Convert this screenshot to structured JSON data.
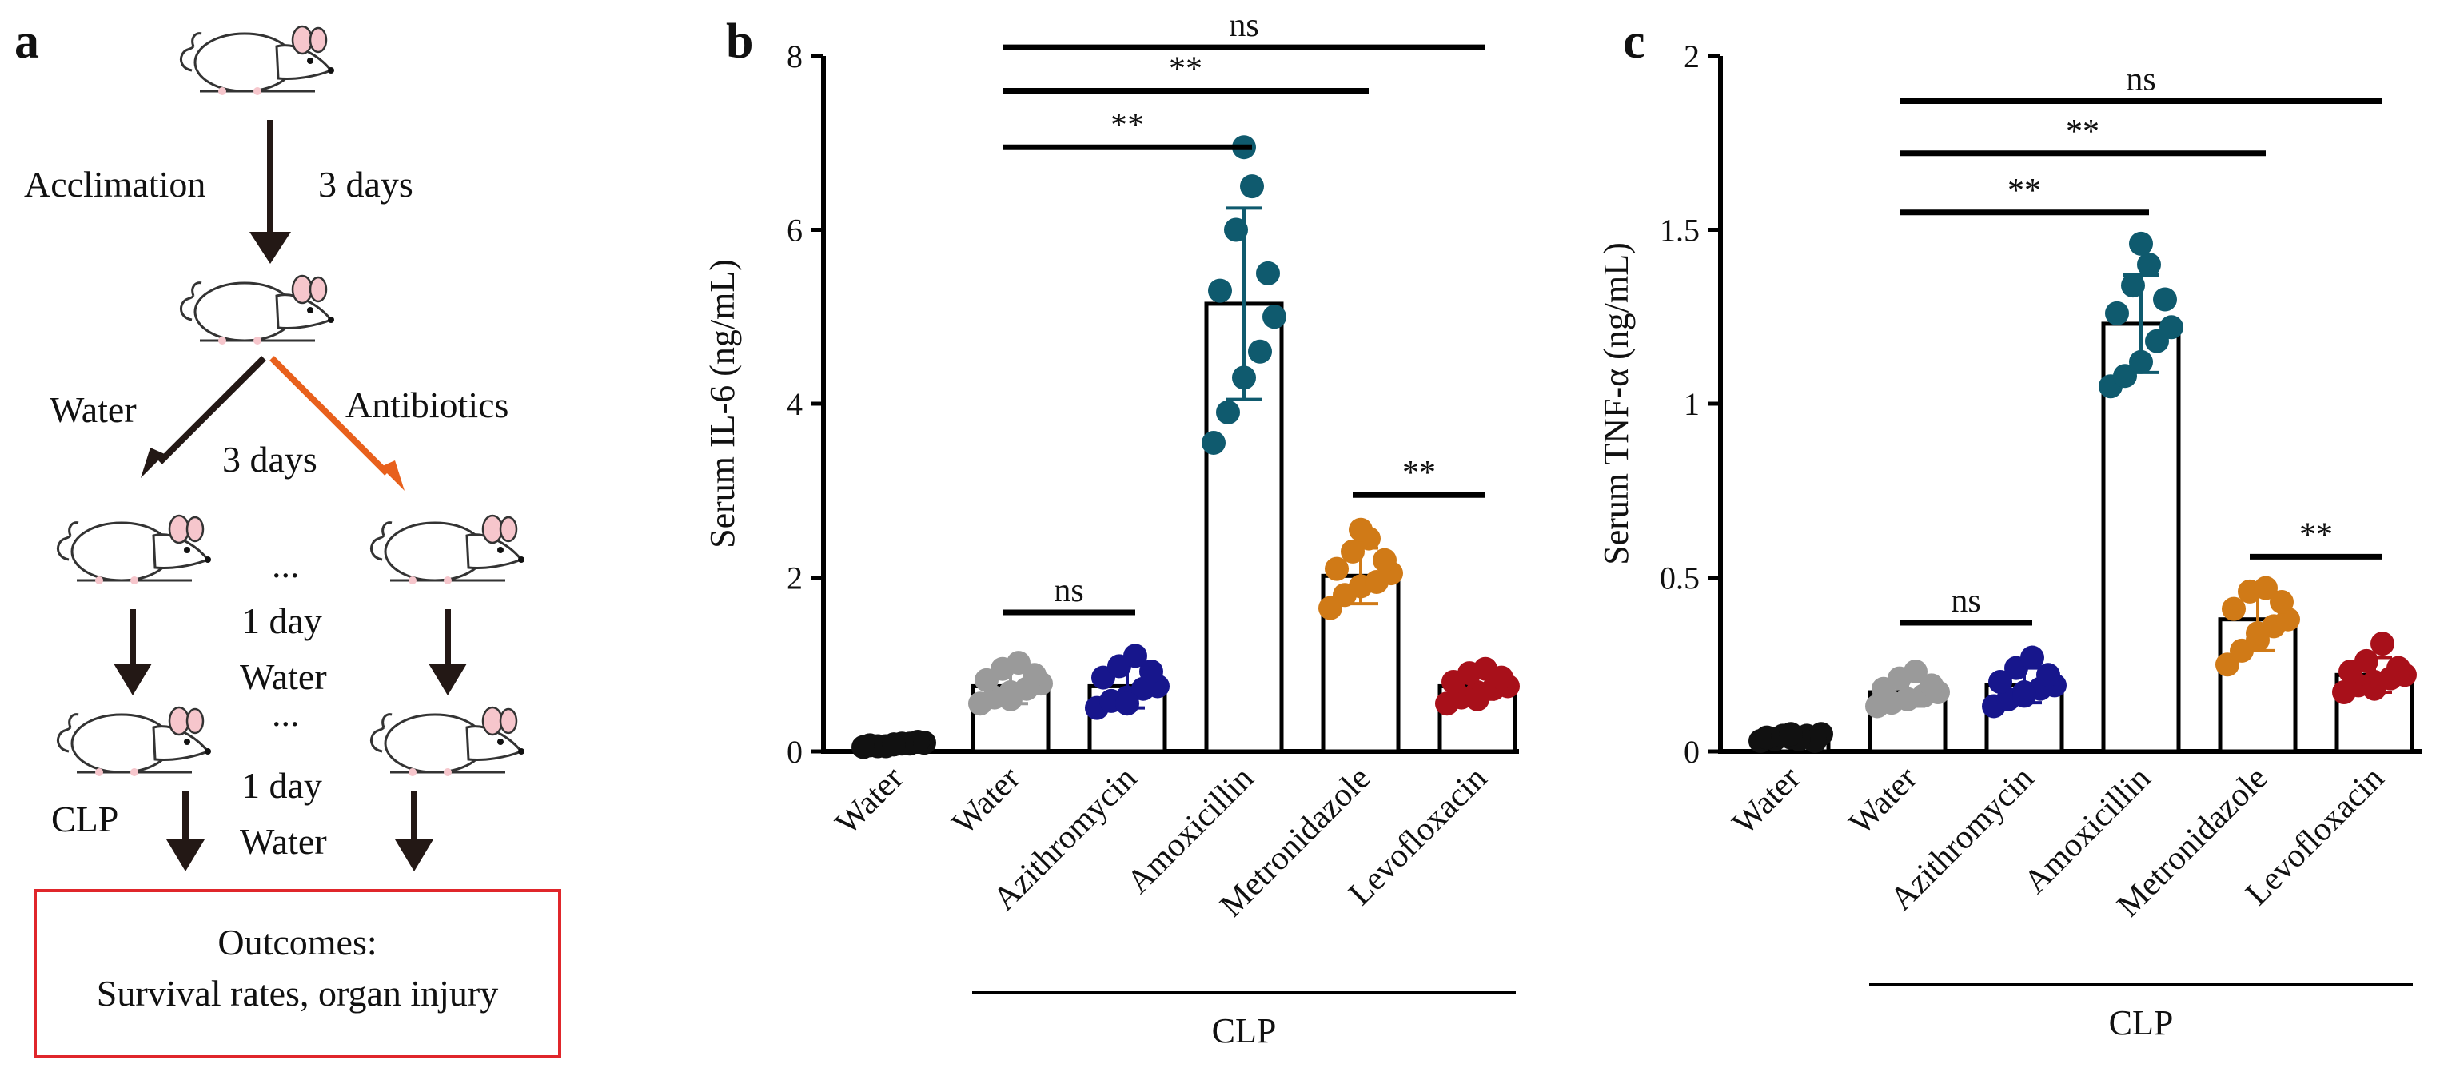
{
  "panel_a": {
    "letter": "a",
    "acclimation": "Acclimation",
    "days1": "3 days",
    "water": "Water",
    "antibiotics": "Antibiotics",
    "days2": "3 days",
    "ellipsis1": "...",
    "day3": "1 day",
    "water2": "Water",
    "ellipsis2": "...",
    "clp": "CLP",
    "day4": "1 day",
    "water3": "Water",
    "outcomes_title": "Outcomes:",
    "outcomes_text": "Survival rates, organ injury",
    "colors": {
      "arrow_dark": "#231815",
      "arrow_orange": "#e8601c",
      "box": "#e0262b"
    }
  },
  "chart_data": [
    {
      "type": "bar",
      "panel": "b",
      "ylabel": "Serum IL-6 (ng/mL)",
      "ylim": [
        0,
        8
      ],
      "yticks": [
        "0",
        "2",
        "4",
        "6",
        "8"
      ],
      "categories": [
        "Water",
        "Water",
        "Azithromycin",
        "Amoxicillin",
        "Metronidazole",
        "Levofloxacin"
      ],
      "group_label": "CLP",
      "values": [
        0.08,
        0.75,
        0.75,
        5.15,
        2.02,
        0.75
      ],
      "sd": [
        0.03,
        0.2,
        0.25,
        1.1,
        0.32,
        0.15
      ],
      "colors": [
        "#111111",
        "#9a9a9a",
        "#17168c",
        "#0f5a6e",
        "#d07a17",
        "#a8101a"
      ],
      "points": [
        [
          0.05,
          0.06,
          0.08,
          0.09,
          0.1,
          0.07,
          0.11,
          0.06,
          0.09,
          0.08
        ],
        [
          0.55,
          0.62,
          0.68,
          0.72,
          0.78,
          0.82,
          0.88,
          0.95,
          1.02,
          0.6
        ],
        [
          0.5,
          0.58,
          0.62,
          0.72,
          0.75,
          0.85,
          0.92,
          0.98,
          1.1,
          0.55
        ],
        [
          3.55,
          3.9,
          4.3,
          4.6,
          5.0,
          5.3,
          5.5,
          6.0,
          6.5,
          6.95
        ],
        [
          1.65,
          1.8,
          1.9,
          1.95,
          2.05,
          2.1,
          2.2,
          2.3,
          2.45,
          2.55
        ],
        [
          0.55,
          0.62,
          0.68,
          0.72,
          0.75,
          0.8,
          0.85,
          0.9,
          0.95,
          0.6
        ]
      ],
      "annotations": [
        {
          "from": 1,
          "to": 2,
          "text": "ns",
          "y": 1.6
        },
        {
          "from": 1,
          "to": 3,
          "text": "**",
          "y": 6.95
        },
        {
          "from": 1,
          "to": 4,
          "text": "**",
          "y": 7.6
        },
        {
          "from": 1,
          "to": 5,
          "text": "ns",
          "y": 8.1
        },
        {
          "from": 4,
          "to": 5,
          "text": "**",
          "y": 2.95
        }
      ]
    },
    {
      "type": "bar",
      "panel": "c",
      "ylabel": "Serum TNF-α (ng/mL)",
      "ylim": [
        0,
        2
      ],
      "yticks": [
        "0",
        "0.5",
        "1",
        "1.5",
        "2"
      ],
      "categories": [
        "Water",
        "Water",
        "Azithromycin",
        "Amoxicillin",
        "Metronidazole",
        "Levofloxacin"
      ],
      "group_label": "CLP",
      "values": [
        0.04,
        0.17,
        0.19,
        1.23,
        0.38,
        0.22
      ],
      "sd": [
        0.01,
        0.04,
        0.05,
        0.14,
        0.09,
        0.05
      ],
      "colors": [
        "#111111",
        "#9a9a9a",
        "#17168c",
        "#0f5a6e",
        "#d07a17",
        "#a8101a"
      ],
      "points": [
        [
          0.03,
          0.035,
          0.04,
          0.045,
          0.05,
          0.04,
          0.03,
          0.045,
          0.035,
          0.05
        ],
        [
          0.13,
          0.14,
          0.15,
          0.16,
          0.17,
          0.18,
          0.19,
          0.21,
          0.23,
          0.15
        ],
        [
          0.13,
          0.15,
          0.17,
          0.18,
          0.19,
          0.2,
          0.22,
          0.24,
          0.27,
          0.16
        ],
        [
          1.05,
          1.08,
          1.12,
          1.18,
          1.22,
          1.26,
          1.3,
          1.34,
          1.4,
          1.46
        ],
        [
          0.25,
          0.29,
          0.32,
          0.36,
          0.38,
          0.41,
          0.43,
          0.46,
          0.47,
          0.34
        ],
        [
          0.17,
          0.19,
          0.2,
          0.21,
          0.22,
          0.23,
          0.24,
          0.26,
          0.31,
          0.18
        ]
      ],
      "annotations": [
        {
          "from": 1,
          "to": 2,
          "text": "ns",
          "y": 0.37
        },
        {
          "from": 1,
          "to": 3,
          "text": "**",
          "y": 1.55
        },
        {
          "from": 1,
          "to": 4,
          "text": "**",
          "y": 1.72
        },
        {
          "from": 1,
          "to": 5,
          "text": "ns",
          "y": 1.87
        },
        {
          "from": 4,
          "to": 5,
          "text": "**",
          "y": 0.56
        }
      ]
    }
  ]
}
